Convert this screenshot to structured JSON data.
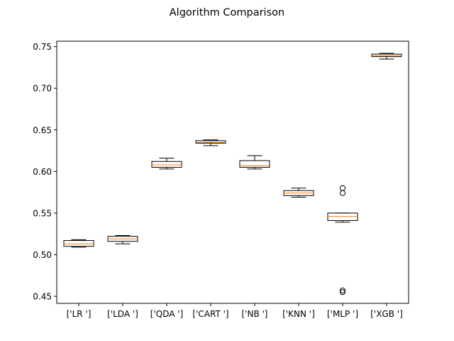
{
  "chart_data": {
    "type": "box",
    "title": "Algorithm Comparison",
    "xlabel": "",
    "ylabel": "",
    "ylim": [
      0.4415,
      0.7565
    ],
    "yticks": [
      0.45,
      0.5,
      0.55,
      0.6,
      0.65,
      0.7,
      0.75
    ],
    "ytick_labels": [
      "0.45",
      "0.50",
      "0.55",
      "0.60",
      "0.65",
      "0.70",
      "0.75"
    ],
    "grid": false,
    "colors": {
      "box": "#000000",
      "median": "#ff7f0e",
      "frame": "#000000",
      "background": "#ffffff"
    },
    "categories": [
      "['LR ']",
      "['LDA ']",
      "['QDA ']",
      "['CART ']",
      "['NB ']",
      "['KNN ']",
      "['MLP ']",
      "['XGB ']"
    ],
    "boxes": [
      {
        "label": "['LR ']",
        "whislo": 0.509,
        "q1": 0.51,
        "med": 0.513,
        "q3": 0.517,
        "whishi": 0.518,
        "fliers": []
      },
      {
        "label": "['LDA ']",
        "whislo": 0.513,
        "q1": 0.516,
        "med": 0.519,
        "q3": 0.522,
        "whishi": 0.523,
        "fliers": []
      },
      {
        "label": "['QDA ']",
        "whislo": 0.603,
        "q1": 0.605,
        "med": 0.608,
        "q3": 0.612,
        "whishi": 0.616,
        "fliers": []
      },
      {
        "label": "['CART ']",
        "whislo": 0.631,
        "q1": 0.634,
        "med": 0.635,
        "q3": 0.637,
        "whishi": 0.638,
        "fliers": []
      },
      {
        "label": "['NB ']",
        "whislo": 0.603,
        "q1": 0.605,
        "med": 0.607,
        "q3": 0.613,
        "whishi": 0.619,
        "fliers": []
      },
      {
        "label": "['KNN ']",
        "whislo": 0.569,
        "q1": 0.571,
        "med": 0.574,
        "q3": 0.577,
        "whishi": 0.58,
        "fliers": []
      },
      {
        "label": "['MLP ']",
        "whislo": 0.539,
        "q1": 0.541,
        "med": 0.546,
        "q3": 0.55,
        "whishi": 0.55,
        "fliers": [
          0.58,
          0.574,
          0.457,
          0.455
        ]
      },
      {
        "label": "['XGB ']",
        "whislo": 0.735,
        "q1": 0.738,
        "med": 0.739,
        "q3": 0.741,
        "whishi": 0.742,
        "fliers": []
      }
    ]
  }
}
